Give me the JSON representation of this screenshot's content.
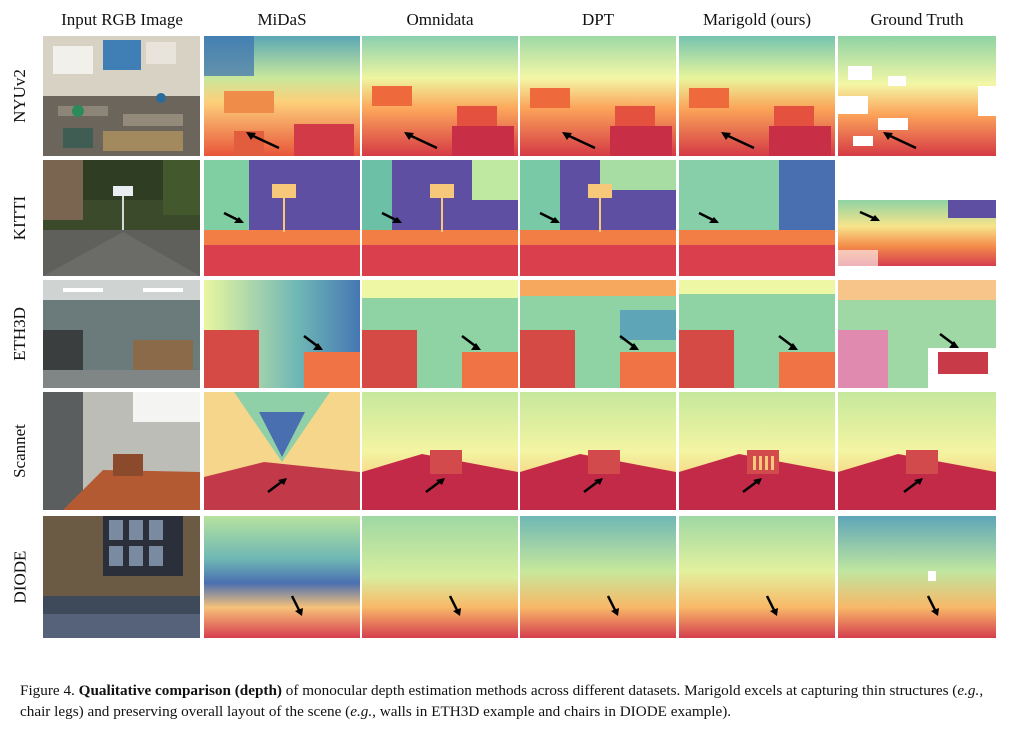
{
  "columns": [
    "Input RGB Image",
    "MiDaS",
    "Omnidata",
    "DPT",
    "Marigold (ours)",
    "Ground Truth"
  ],
  "rows": [
    "NYUv2",
    "KITTI",
    "ETH3D",
    "Scannet",
    "DIODE"
  ],
  "caption": {
    "label": "Figure 4.",
    "title": "Qualitative comparison (depth)",
    "part1": " of monocular depth estimation methods across different datasets. Marigold excels at capturing thin structures (",
    "eg1": "e.g.",
    "part2": ", chair legs) and preserving overall layout of the scene (",
    "eg2": "e.g.",
    "part3": ", walls in ETH3D example and chairs in DIODE example)."
  },
  "colors": {
    "far": "#5e4fa2",
    "mid": "#8fd3a4",
    "pale": "#eef8a8",
    "warm": "#fdae61",
    "near": "#d53e4f",
    "nearest": "#b01a4c"
  }
}
